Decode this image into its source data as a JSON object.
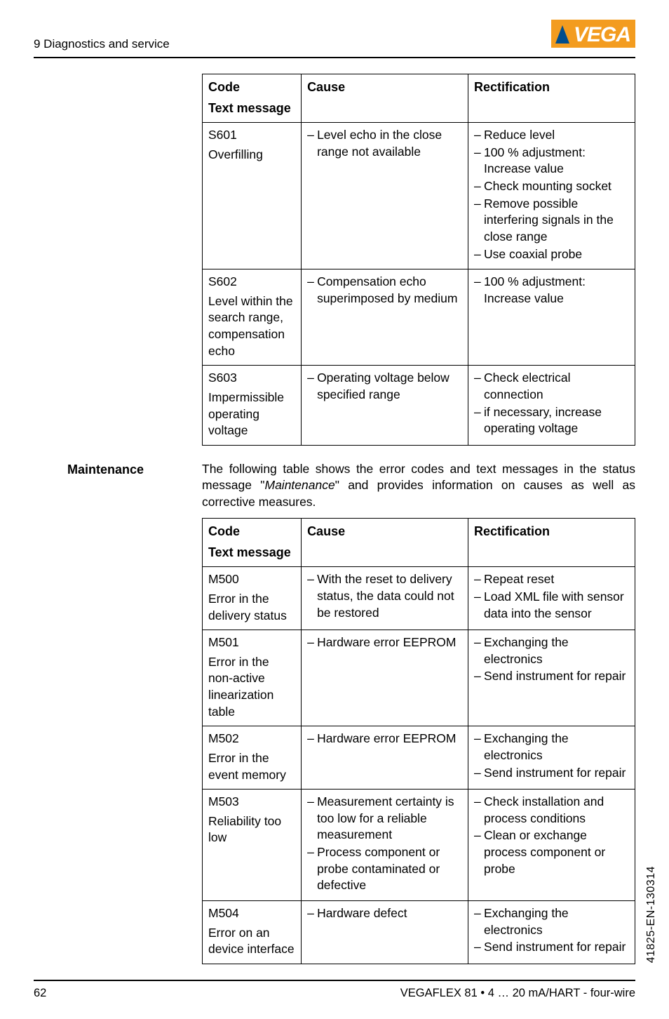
{
  "header": {
    "section": "9 Diagnostics and service"
  },
  "logo": {
    "text_main": "VEGA",
    "bg_color": "#f39c1f",
    "text_color": "#ffffff",
    "tri_color": "#004d8c"
  },
  "table1": {
    "headers": {
      "code_line1": "Code",
      "code_line2": "Text message",
      "cause": "Cause",
      "rect": "Rectification"
    },
    "rows": [
      {
        "code_id": "S601",
        "code_text": "Overfilling",
        "cause": [
          "Level echo in the close range not available"
        ],
        "rect": [
          "Reduce level",
          "100 % adjustment: Increase value",
          "Check mounting socket",
          "Remove possible interfering signals in the close range",
          "Use coaxial probe"
        ]
      },
      {
        "code_id": "S602",
        "code_text": "Level within the search range, compensation echo",
        "cause": [
          "Compensation echo superimposed by medium"
        ],
        "rect": [
          "100 % adjustment: Increase value"
        ]
      },
      {
        "code_id": "S603",
        "code_text": "Impermissible operating voltage",
        "cause": [
          "Operating voltage below specified range"
        ],
        "rect": [
          "Check electrical connection",
          "if necessary, increase operating voltage"
        ]
      }
    ]
  },
  "maintenance": {
    "label": "Maintenance",
    "para": "The following table shows the error codes and text messages in the status message \"Maintenance\" and provides information on causes as well as corrective measures.",
    "para_prefix": "The following table shows the error codes and text messages in the status message \"",
    "para_italic": "Maintenance",
    "para_suffix": "\" and provides information on causes as well as corrective measures."
  },
  "table2": {
    "headers": {
      "code_line1": "Code",
      "code_line2": "Text message",
      "cause": "Cause",
      "rect": "Rectification"
    },
    "rows": [
      {
        "code_id": "M500",
        "code_text": "Error in the delivery status",
        "cause": [
          "With the reset to delivery status, the data could not be restored"
        ],
        "rect": [
          "Repeat reset",
          "Load XML file with sensor data into the sensor"
        ]
      },
      {
        "code_id": "M501",
        "code_text": "Error in the non-active linearization table",
        "cause": [
          "Hardware error EEPROM"
        ],
        "rect": [
          "Exchanging the electronics",
          "Send instrument for repair"
        ]
      },
      {
        "code_id": "M502",
        "code_text": "Error in the event memory",
        "cause": [
          "Hardware error EEPROM"
        ],
        "rect": [
          "Exchanging the electronics",
          "Send instrument for repair"
        ]
      },
      {
        "code_id": "M503",
        "code_text": "Reliability too low",
        "cause": [
          "Measurement certainty is too low for a reliable measurement",
          "Process component or probe contaminated or defective"
        ],
        "rect": [
          "Check installation and process conditions",
          "Clean or exchange process component or probe"
        ]
      },
      {
        "code_id": "M504",
        "code_text": "Error on an device interface",
        "cause": [
          "Hardware defect"
        ],
        "rect": [
          "Exchanging the electronics",
          "Send instrument for repair"
        ]
      }
    ]
  },
  "footer": {
    "page": "62",
    "ref": "VEGAFLEX 81 • 4 … 20 mA/HART - four-wire",
    "side_code": "41825-EN-130314"
  }
}
